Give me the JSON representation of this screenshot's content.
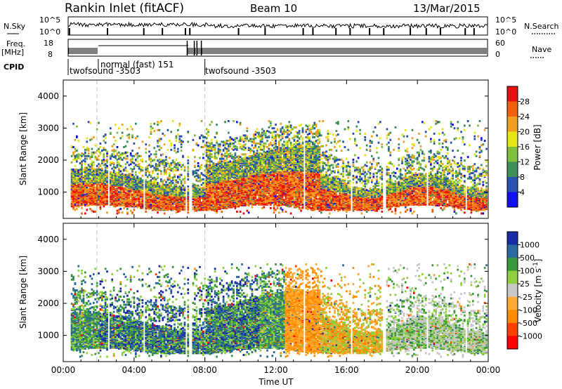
{
  "header": {
    "station": "Rankin Inlet (fitACF)",
    "beam": "Beam 10",
    "date": "13/Mar/2015"
  },
  "summary_panels": {
    "nsky_label": "N.Sky",
    "nsearch_label": "N.Search",
    "nsky_ticks": [
      "10^5",
      "10^0"
    ],
    "freq_label_1": "Freq.",
    "freq_label_2": "[MHz]",
    "freq_ticks": [
      "18",
      "8"
    ],
    "nave_label": "Nave",
    "nave_ticks": [
      "60",
      "0"
    ],
    "cpid_label": "CPID",
    "cpid_segments": [
      {
        "label": "twofsound -3503",
        "start_hour": 0.0
      },
      {
        "label": "normal (fast) 151",
        "start_hour": 1.9
      },
      {
        "label": "twofsound -3503",
        "start_hour": 8.0
      }
    ]
  },
  "colors": {
    "power": [
      "#1010f0",
      "#2a52b0",
      "#3e8f5a",
      "#7fbf3e",
      "#e6e619",
      "#f0a020",
      "#f06010",
      "#e81010"
    ],
    "velocity": [
      "#ff0000",
      "#ff4000",
      "#ff8c00",
      "#ffaa30",
      "#c8c8c8",
      "#8fd040",
      "#3a9a3a",
      "#2a6aa0",
      "#1a2aa8"
    ]
  },
  "chart_data": [
    {
      "type": "heatmap",
      "ylabel": "Slant Range [km]",
      "y_ticks": [
        1000,
        2000,
        3000,
        4000
      ],
      "ylim": [
        180,
        4500
      ],
      "x_ticks": [
        "00:00",
        "04:00",
        "08:00",
        "12:00",
        "16:00",
        "20:00",
        "00:00"
      ],
      "xlim_hours": [
        0,
        24
      ],
      "colorbar_label": "Power [dB]",
      "colorbar_ticks": [
        "4",
        "8",
        "12",
        "16",
        "20",
        "24",
        "28"
      ],
      "colorbar_range": [
        0,
        32
      ]
    },
    {
      "type": "heatmap",
      "ylabel": "Slant Range [km]",
      "y_ticks": [
        1000,
        2000,
        3000,
        4000
      ],
      "ylim": [
        180,
        4500
      ],
      "x_ticks": [
        "00:00",
        "04:00",
        "08:00",
        "12:00",
        "16:00",
        "20:00",
        "00:00"
      ],
      "xlim_hours": [
        0,
        24
      ],
      "xlabel": "Time UT",
      "colorbar_label": "Velocity [m s^-1]",
      "colorbar_ticks": [
        "1000",
        "500",
        "100",
        "25",
        "-25",
        "-100",
        "-500",
        "-1000"
      ]
    }
  ]
}
